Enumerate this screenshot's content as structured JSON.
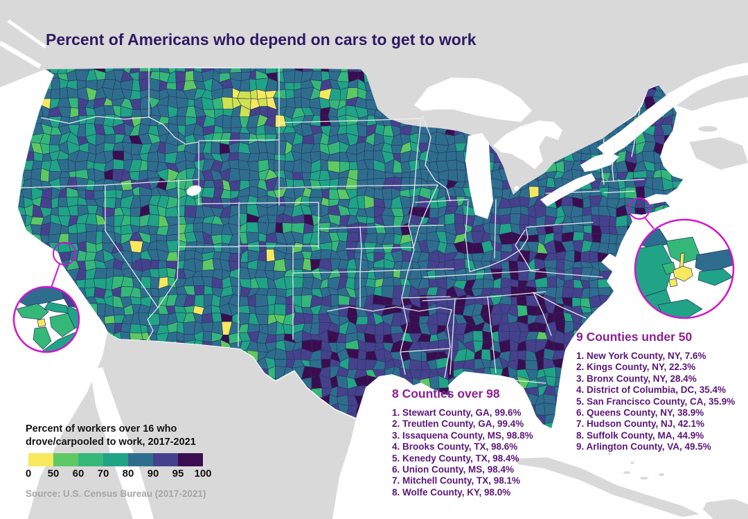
{
  "title": "Percent of Americans who depend on cars to get to work",
  "legend": {
    "title_line1": "Percent of workers over 16 who",
    "title_line2": "drove/carpooled to work, 2017-2021",
    "ticks": [
      "0",
      "50",
      "60",
      "70",
      "80",
      "90",
      "95",
      "100"
    ],
    "colors": [
      "#f7e85e",
      "#5ec962",
      "#35b779",
      "#20a386",
      "#2e6d8e",
      "#45418d",
      "#3a0d51"
    ]
  },
  "source": "Source: U.S. Census Bureau (2017-2021)",
  "lists": {
    "over98": {
      "header": "8 Counties over 98",
      "items": [
        {
          "rank": "1",
          "name": "Stewart County, GA",
          "value": "99.6%"
        },
        {
          "rank": "2",
          "name": "Treutlen County, GA",
          "value": "99.4%"
        },
        {
          "rank": "3",
          "name": "Issaquena County, MS",
          "value": "98.8%"
        },
        {
          "rank": "4",
          "name": "Brooks County, TX",
          "value": "98.6%"
        },
        {
          "rank": "5",
          "name": "Kenedy County, TX",
          "value": "98.4%"
        },
        {
          "rank": "6",
          "name": "Union County, MS",
          "value": "98.4%"
        },
        {
          "rank": "7",
          "name": "Mitchell County, TX",
          "value": "98.1%"
        },
        {
          "rank": "8",
          "name": "Wolfe County, KY",
          "value": "98.0%"
        }
      ]
    },
    "under50": {
      "header": "9 Counties under 50",
      "items": [
        {
          "rank": "1",
          "name": "New York County, NY",
          "value": "7.6%"
        },
        {
          "rank": "2",
          "name": "Kings County, NY",
          "value": "22.3%"
        },
        {
          "rank": "3",
          "name": "Bronx County, NY",
          "value": "28.4%"
        },
        {
          "rank": "4",
          "name": "District of Columbia, DC",
          "value": "35.4%"
        },
        {
          "rank": "5",
          "name": "San Francisco County, CA",
          "value": "35.9%"
        },
        {
          "rank": "6",
          "name": "Queens County, NY",
          "value": "38.9%"
        },
        {
          "rank": "7",
          "name": "Hudson County, NJ",
          "value": "42.1%"
        },
        {
          "rank": "8",
          "name": "Suffolk County, MA",
          "value": "44.9%"
        },
        {
          "rank": "9",
          "name": "Arlington County, VA",
          "value": "49.5%"
        }
      ]
    }
  },
  "colors": {
    "accent_magenta": "#d411cf",
    "other_land_gray": "#d9d9d9",
    "water_white": "#ffffff",
    "county_border": "#243457",
    "state_border": "#efefef",
    "title_text": "#2e1a64",
    "list_header_text": "#8d1d96",
    "list_item_text": "#5c1579",
    "source_text": "#a5a5a5"
  },
  "chart_data": {
    "type": "choropleth",
    "title": "Percent of Americans who depend on cars to get to work",
    "legend_label": "Percent of workers over 16 who drove/carpooled to work, 2017-2021",
    "scale_bins": [
      {
        "range": "0-50",
        "color": "#f7e85e"
      },
      {
        "range": "50-60",
        "color": "#5ec962"
      },
      {
        "range": "60-70",
        "color": "#35b779"
      },
      {
        "range": "70-80",
        "color": "#20a386"
      },
      {
        "range": "80-90",
        "color": "#2e6d8e"
      },
      {
        "range": "90-95",
        "color": "#45418d"
      },
      {
        "range": "95-100",
        "color": "#3a0d51"
      }
    ],
    "highest_counties": [
      {
        "county": "Stewart County, GA",
        "percent": 99.6
      },
      {
        "county": "Treutlen County, GA",
        "percent": 99.4
      },
      {
        "county": "Issaquena County, MS",
        "percent": 98.8
      },
      {
        "county": "Brooks County, TX",
        "percent": 98.6
      },
      {
        "county": "Kenedy County, TX",
        "percent": 98.4
      },
      {
        "county": "Union County, MS",
        "percent": 98.4
      },
      {
        "county": "Mitchell County, TX",
        "percent": 98.1
      },
      {
        "county": "Wolfe County, KY",
        "percent": 98.0
      }
    ],
    "lowest_counties": [
      {
        "county": "New York County, NY",
        "percent": 7.6
      },
      {
        "county": "Kings County, NY",
        "percent": 22.3
      },
      {
        "county": "Bronx County, NY",
        "percent": 28.4
      },
      {
        "county": "District of Columbia, DC",
        "percent": 35.4
      },
      {
        "county": "San Francisco County, CA",
        "percent": 35.9
      },
      {
        "county": "Queens County, NY",
        "percent": 38.9
      },
      {
        "county": "Hudson County, NJ",
        "percent": 42.1
      },
      {
        "county": "Suffolk County, MA",
        "percent": 44.9
      },
      {
        "county": "Arlington County, VA",
        "percent": 49.5
      }
    ],
    "insets": [
      "San Francisco Bay Area",
      "New York City area"
    ],
    "source": "Source: U.S. Census Bureau (2017-2021)"
  }
}
